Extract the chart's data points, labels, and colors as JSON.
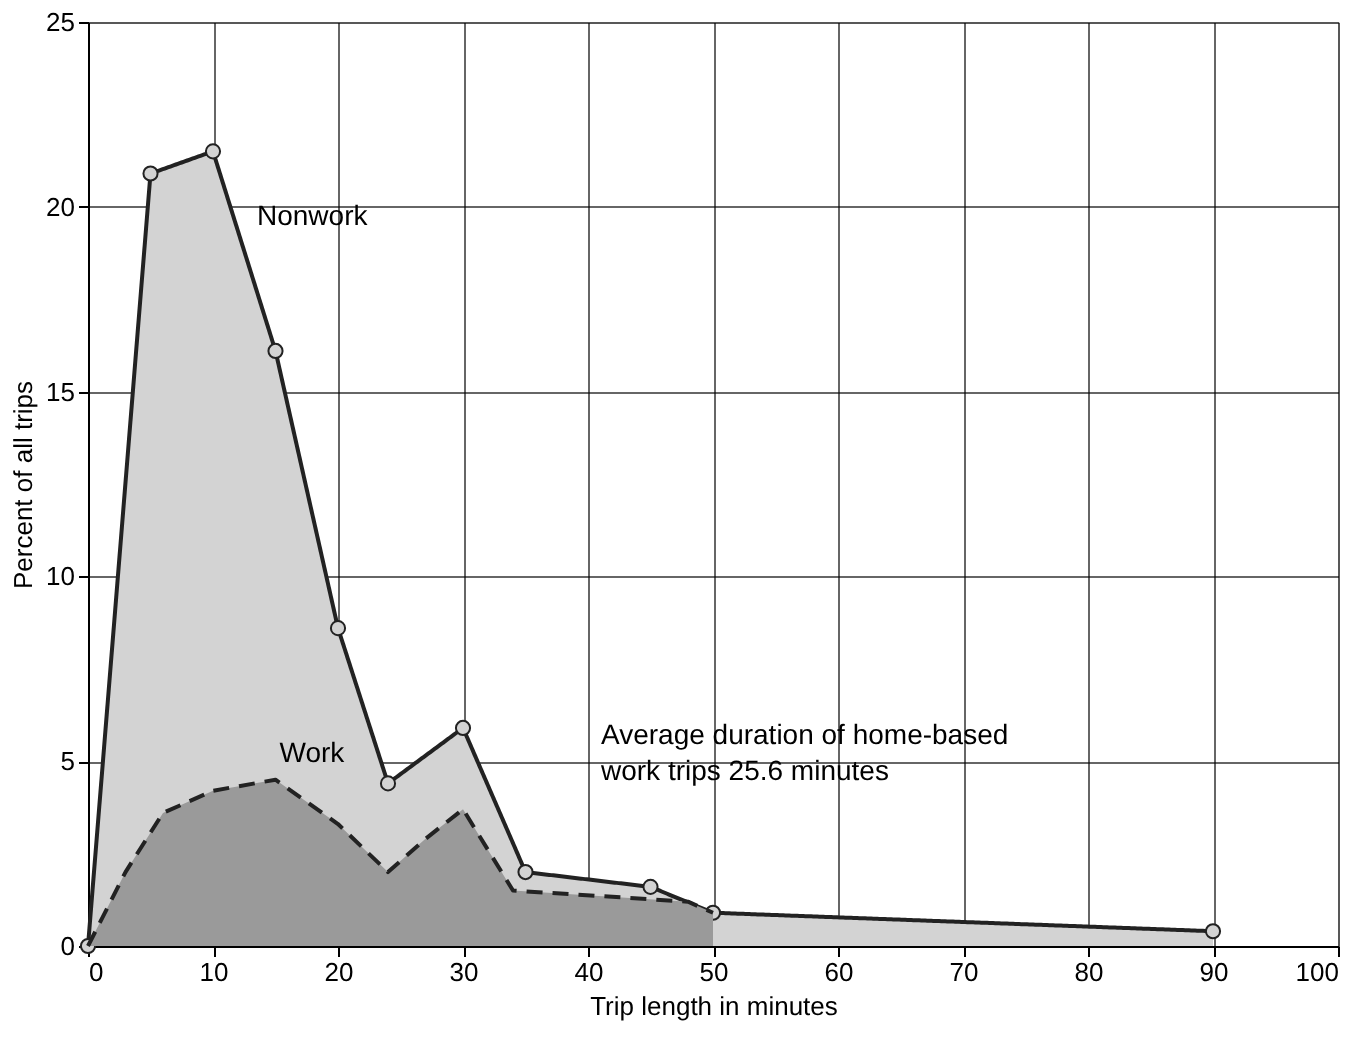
{
  "chart_data": {
    "type": "area",
    "xlabel": "Trip length in minutes",
    "ylabel": "Percent of all trips",
    "xlim": [
      0,
      100
    ],
    "xticks": [
      0,
      10,
      20,
      30,
      40,
      50,
      60,
      70,
      80,
      90,
      100
    ],
    "ylim": [
      0,
      25
    ],
    "yticks": [
      0,
      5,
      10,
      15,
      20,
      25
    ],
    "grid": true,
    "legend": false,
    "annotations": [
      "Average duration of home-based work trips 25.6 minutes"
    ],
    "series": [
      {
        "name": "Nonwork",
        "color": "#d3d3d3",
        "marker": "circle",
        "line_style": "solid",
        "x": [
          0,
          5,
          10,
          15,
          20,
          24,
          30,
          35,
          45,
          50,
          90
        ],
        "values": [
          0,
          20.9,
          21.5,
          16.1,
          8.6,
          4.4,
          5.9,
          2.0,
          1.6,
          0.9,
          0.4
        ]
      },
      {
        "name": "Work",
        "color": "#9a9a9a",
        "marker": "none",
        "line_style": "dashed",
        "x": [
          0,
          3,
          6,
          10,
          15,
          20,
          24,
          27,
          30,
          34,
          48,
          50
        ],
        "values": [
          0,
          2.0,
          3.6,
          4.2,
          4.5,
          3.3,
          2.0,
          2.9,
          3.7,
          1.5,
          1.2,
          0.9
        ]
      }
    ]
  }
}
